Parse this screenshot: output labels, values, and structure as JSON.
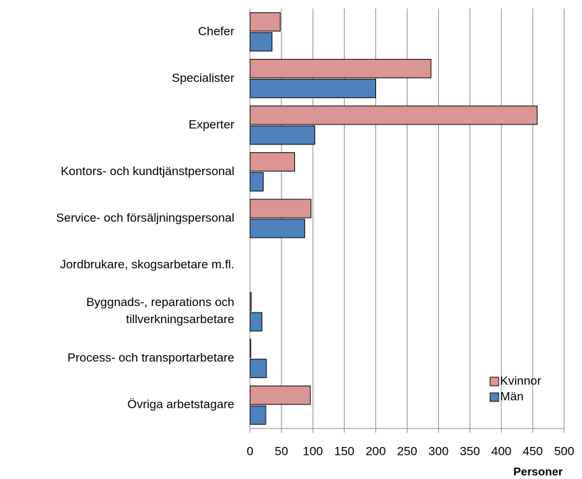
{
  "chart_data": {
    "type": "bar",
    "orientation": "horizontal",
    "x_label": "Personer",
    "categories": [
      "Chefer",
      "Specialister",
      "Experter",
      "Kontors- och kundtjänstpersonal",
      "Service- och försäljningspersonal",
      "Jordbrukare, skogsarbetare m.fl.",
      "Byggnads-, reparations och\ntillverkningsarbetare",
      "Process- och transportarbetare",
      "Övriga arbetstagare"
    ],
    "series": [
      {
        "name": "Kvinnor",
        "color": "#d99694",
        "values": [
          48,
          288,
          457,
          71,
          97,
          0,
          2,
          1,
          96
        ]
      },
      {
        "name": "Män",
        "color": "#4f81bd",
        "values": [
          35,
          200,
          103,
          21,
          87,
          0,
          19,
          26,
          25
        ]
      }
    ],
    "xlim": [
      0,
      500
    ],
    "xticks": [
      0,
      50,
      100,
      150,
      200,
      250,
      300,
      350,
      400,
      450,
      500
    ],
    "grid": true,
    "legend": "lower-right"
  }
}
